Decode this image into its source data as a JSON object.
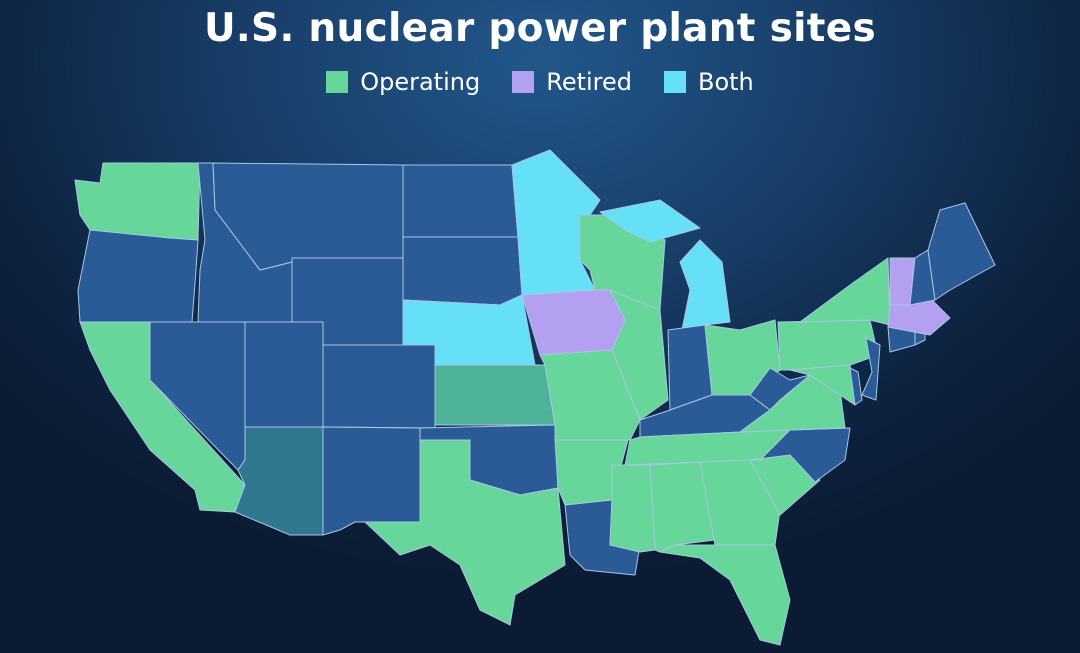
{
  "title": "U.S. nuclear power plant sites",
  "legend": [
    {
      "key": "operating",
      "label": "Operating",
      "color": "#66d69a"
    },
    {
      "key": "retired",
      "label": "Retired",
      "color": "#b3a0f0"
    },
    {
      "key": "both",
      "label": "Both",
      "color": "#66e0f6"
    }
  ],
  "colors": {
    "none": "#2b5b97",
    "highlight_operating": "#4fb39a",
    "highlight_none": "#2f7890"
  },
  "states": {
    "WA": "operating",
    "OR": "none",
    "CA": "operating",
    "ID": "none",
    "NV": "none",
    "MT": "none",
    "WY": "none",
    "UT": "none",
    "AZ": "highlight_none",
    "CO": "none",
    "NM": "none",
    "ND": "none",
    "SD": "none",
    "NE": "both",
    "KS": "highlight_operating",
    "OK": "none",
    "TX": "operating",
    "MN": "both",
    "IA": "retired",
    "MO": "operating",
    "AR": "operating",
    "LA": "none",
    "WI": "operating",
    "IL": "operating",
    "MI": "both",
    "MI_UP": "both",
    "IN": "none",
    "OH": "operating",
    "KY": "none",
    "TN": "operating",
    "MS": "operating",
    "AL": "operating",
    "GA": "operating",
    "FL": "operating",
    "SC": "operating",
    "NC": "none",
    "VA": "operating",
    "WV": "none",
    "PA": "operating",
    "NY": "operating",
    "MD": "operating",
    "DE": "none",
    "NJ": "none",
    "CT": "none",
    "RI": "none",
    "MA": "retired",
    "VT": "retired",
    "NH": "none",
    "ME": "none"
  }
}
